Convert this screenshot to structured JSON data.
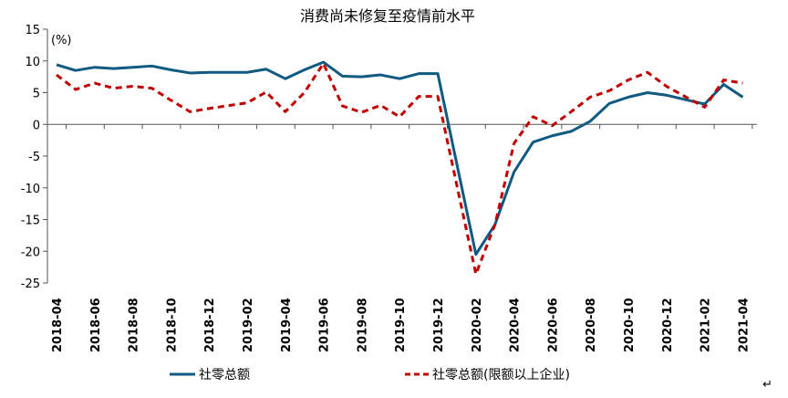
{
  "chart_data": {
    "type": "line",
    "title": "消费尚未修复至疫情前水平",
    "ylabel": "(%)",
    "xlabel": "",
    "ylim": [
      -25,
      15
    ],
    "yticks": [
      15,
      10,
      5,
      0,
      -5,
      -10,
      -15,
      -20,
      -25
    ],
    "grid": false,
    "legend_position": "bottom",
    "x": [
      "2018-04",
      "2018-05",
      "2018-06",
      "2018-07",
      "2018-08",
      "2018-09",
      "2018-10",
      "2018-11",
      "2018-12",
      "2019-01",
      "2019-02",
      "2019-03",
      "2019-04",
      "2019-05",
      "2019-06",
      "2019-07",
      "2019-08",
      "2019-09",
      "2019-10",
      "2019-11",
      "2019-12",
      "2020-01",
      "2020-02",
      "2020-03",
      "2020-04",
      "2020-05",
      "2020-06",
      "2020-07",
      "2020-08",
      "2020-09",
      "2020-10",
      "2020-11",
      "2020-12",
      "2021-01",
      "2021-02",
      "2021-03",
      "2021-04"
    ],
    "xtick_labels": [
      "2018-04",
      "2018-06",
      "2018-08",
      "2018-10",
      "2018-12",
      "2019-02",
      "2019-04",
      "2019-06",
      "2019-08",
      "2019-10",
      "2019-12",
      "2020-02",
      "2020-04",
      "2020-06",
      "2020-08",
      "2020-10",
      "2020-12",
      "2021-02",
      "2021-04"
    ],
    "series": [
      {
        "name": "社零总额",
        "color": "#0e5a82",
        "style": "solid",
        "values": [
          9.4,
          8.5,
          9.0,
          8.8,
          9.0,
          9.2,
          8.6,
          8.1,
          8.2,
          null,
          8.2,
          8.7,
          7.2,
          8.6,
          9.8,
          7.6,
          7.5,
          7.8,
          7.2,
          8.0,
          8.0,
          null,
          -20.5,
          -15.8,
          -7.5,
          -2.8,
          -1.8,
          -1.1,
          0.5,
          3.3,
          4.3,
          5.0,
          4.6,
          null,
          3.2,
          6.3,
          4.3
        ]
      },
      {
        "name": "社零总额(限额以上企业)",
        "color": "#c00000",
        "style": "dashed",
        "values": [
          7.8,
          5.5,
          6.5,
          5.7,
          6.0,
          5.7,
          3.8,
          2.0,
          2.5,
          null,
          3.4,
          5.1,
          2.0,
          5.0,
          9.6,
          2.9,
          1.9,
          3.0,
          1.2,
          4.4,
          4.4,
          null,
          -23.6,
          -15.8,
          -3.0,
          1.2,
          -0.2,
          2.0,
          4.3,
          5.3,
          7.0,
          8.2,
          6.0,
          null,
          2.7,
          7.0,
          6.5
        ]
      }
    ]
  }
}
